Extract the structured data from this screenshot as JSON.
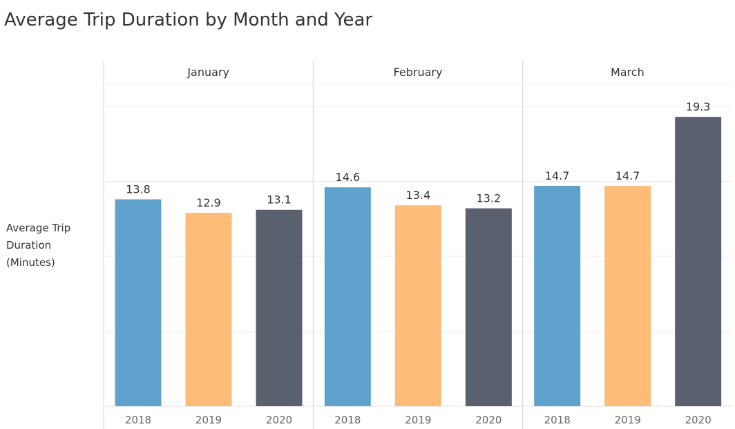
{
  "chart_data": {
    "type": "bar",
    "title": "Average Trip Duration by Month and Year",
    "ylabel": "Average Trip Duration (Minutes)",
    "ylim": [
      0,
      20
    ],
    "grid": true,
    "colors": {
      "2018": "#5fa2cd",
      "2019": "#ffbb78",
      "2020": "#5a606e"
    },
    "panels": [
      {
        "month": "January",
        "bars": [
          {
            "year": "2018",
            "value": 13.8,
            "label": "13.8"
          },
          {
            "year": "2019",
            "value": 12.9,
            "label": "12.9"
          },
          {
            "year": "2020",
            "value": 13.1,
            "label": "13.1"
          }
        ]
      },
      {
        "month": "February",
        "bars": [
          {
            "year": "2018",
            "value": 14.6,
            "label": "14.6"
          },
          {
            "year": "2019",
            "value": 13.4,
            "label": "13.4"
          },
          {
            "year": "2020",
            "value": 13.2,
            "label": "13.2"
          }
        ]
      },
      {
        "month": "March",
        "bars": [
          {
            "year": "2018",
            "value": 14.7,
            "label": "14.7"
          },
          {
            "year": "2019",
            "value": 14.7,
            "label": "14.7"
          },
          {
            "year": "2020",
            "value": 19.3,
            "label": "19.3"
          }
        ]
      }
    ]
  }
}
